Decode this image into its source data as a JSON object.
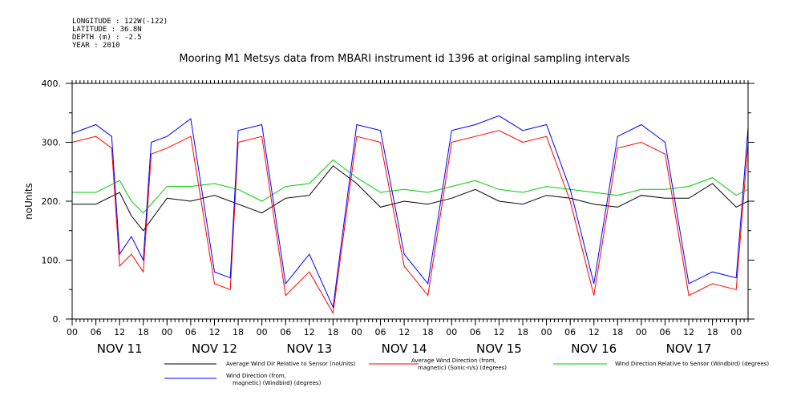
{
  "header": {
    "longitude": "LONGITUDE : 122W(-122)",
    "latitude": "LATITUDE : 36.8N",
    "depth": "DEPTH (m) : -2.5",
    "year": "YEAR : 2010"
  },
  "chart_data": {
    "type": "line",
    "title": "Mooring M1 Metsys data from MBARI instrument id 1396 at original sampling intervals",
    "ylabel": "noUnits",
    "ylim": [
      0,
      400
    ],
    "yticks": [
      "0.",
      "100.",
      "200.",
      "300.",
      "400."
    ],
    "xlim": [
      "2010-11-11T00:00",
      "2010-11-18T03:00"
    ],
    "xtick_hours": [
      "00",
      "06",
      "12",
      "18"
    ],
    "days": [
      "NOV 11",
      "NOV 12",
      "NOV 13",
      "NOV 14",
      "NOV 15",
      "NOV 16",
      "NOV 17"
    ],
    "series": [
      {
        "name": "Average Wind Dir Relative to Sensor (noUnits)",
        "color": "#000000",
        "x_hours": [
          0,
          6,
          12,
          15,
          18,
          24,
          30,
          36,
          42,
          48,
          54,
          60,
          66,
          72,
          78,
          84,
          90,
          96,
          102,
          108,
          114,
          120,
          126,
          132,
          138,
          144,
          150,
          156,
          162,
          168,
          171
        ],
        "values": [
          195,
          195,
          215,
          175,
          150,
          205,
          200,
          210,
          195,
          180,
          205,
          210,
          260,
          230,
          190,
          200,
          195,
          205,
          220,
          200,
          195,
          210,
          205,
          195,
          190,
          210,
          205,
          205,
          230,
          190,
          200
        ]
      },
      {
        "name": "Average Wind Direction (from, magnetic) (Sonic-n/s) (degrees)",
        "color": "#ff0000",
        "x_hours": [
          0,
          6,
          10,
          12,
          15,
          18,
          20,
          24,
          30,
          36,
          40,
          42,
          48,
          54,
          60,
          66,
          72,
          78,
          84,
          90,
          96,
          102,
          108,
          114,
          120,
          126,
          132,
          138,
          144,
          150,
          156,
          162,
          168,
          171
        ],
        "values": [
          300,
          310,
          290,
          90,
          110,
          80,
          280,
          290,
          310,
          60,
          50,
          300,
          310,
          40,
          80,
          10,
          310,
          300,
          90,
          40,
          300,
          310,
          320,
          300,
          310,
          200,
          40,
          290,
          300,
          280,
          40,
          60,
          50,
          300
        ]
      },
      {
        "name": "Wind Direction Relative to Sensor (Windbird) (degrees)",
        "color": "#00cc00",
        "x_hours": [
          0,
          6,
          12,
          15,
          18,
          24,
          30,
          36,
          42,
          48,
          54,
          60,
          66,
          72,
          78,
          84,
          90,
          96,
          102,
          108,
          114,
          120,
          126,
          132,
          138,
          144,
          150,
          156,
          162,
          168,
          171
        ],
        "values": [
          215,
          215,
          235,
          200,
          180,
          225,
          225,
          230,
          220,
          200,
          225,
          230,
          270,
          240,
          215,
          220,
          215,
          225,
          235,
          220,
          215,
          225,
          220,
          215,
          210,
          220,
          220,
          225,
          240,
          210,
          220
        ]
      },
      {
        "name": "Wind Direction (from, magnetic) (Windbird) (degrees)",
        "color": "#0000ff",
        "x_hours": [
          0,
          6,
          10,
          12,
          15,
          18,
          20,
          24,
          30,
          36,
          40,
          42,
          48,
          54,
          60,
          66,
          72,
          78,
          84,
          90,
          96,
          102,
          108,
          114,
          120,
          126,
          132,
          138,
          144,
          150,
          156,
          162,
          168,
          171
        ],
        "values": [
          315,
          330,
          310,
          110,
          140,
          100,
          300,
          310,
          340,
          80,
          70,
          320,
          330,
          60,
          110,
          20,
          330,
          320,
          110,
          60,
          320,
          330,
          345,
          320,
          330,
          220,
          60,
          310,
          330,
          300,
          60,
          80,
          70,
          325
        ]
      }
    ],
    "legend_position": "bottom"
  }
}
